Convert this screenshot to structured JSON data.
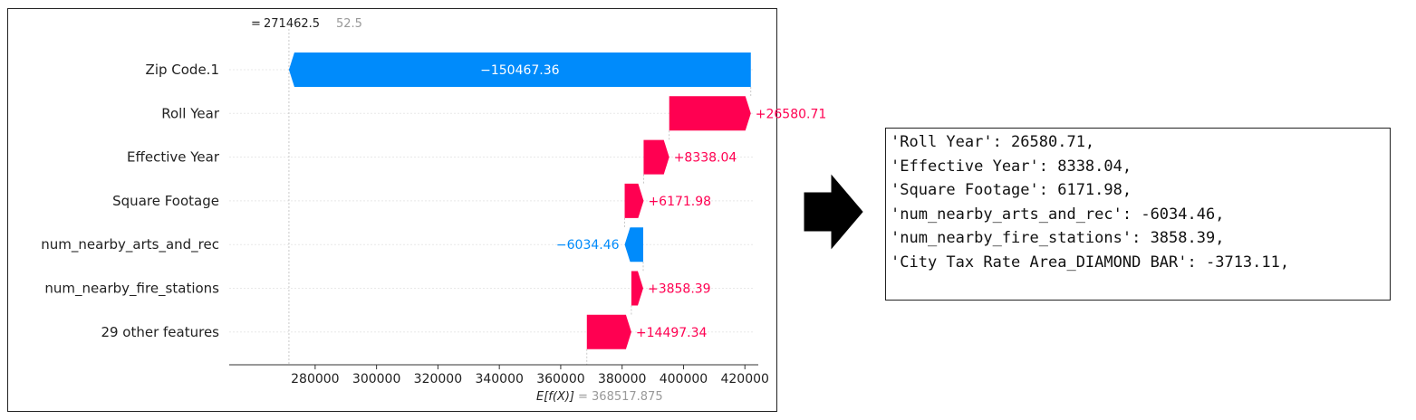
{
  "chart_data": {
    "type": "waterfall",
    "fx_label_prefix": "= ",
    "fx_value": "271462.5",
    "fx_overlap_fragment": "52.5",
    "base_label": "E[f(X)]",
    "base_value": "= 368517.875",
    "base_value_num": 368517.875,
    "xlim": [
      252000,
      422000
    ],
    "x_ticks": [
      280000,
      300000,
      320000,
      340000,
      360000,
      380000,
      400000,
      420000
    ],
    "x_tick_labels": [
      "280000",
      "300000",
      "320000",
      "340000",
      "360000",
      "380000",
      "400000",
      "420000"
    ],
    "features": [
      {
        "name": "Zip Code.1",
        "value": -150467.36,
        "label": "−150467.36",
        "start": 421929.86,
        "end": 271462.5
      },
      {
        "name": "Roll Year",
        "value": 26580.71,
        "label": "+26580.71",
        "start": 395349.15,
        "end": 421929.86
      },
      {
        "name": "Effective Year",
        "value": 8338.04,
        "label": "+8338.04",
        "start": 387011.11,
        "end": 395349.15
      },
      {
        "name": "Square Footage",
        "value": 6171.98,
        "label": "+6171.98",
        "start": 380839.13,
        "end": 387011.11
      },
      {
        "name": "num_nearby_arts_and_rec",
        "value": -6034.46,
        "label": "−6034.46",
        "start": 386873.59,
        "end": 380839.13
      },
      {
        "name": "num_nearby_fire_stations",
        "value": 3858.39,
        "label": "+3858.39",
        "start": 383015.2,
        "end": 386873.59
      },
      {
        "name": "29 other features",
        "value": 14497.34,
        "label": "+14497.34",
        "start": 368517.86,
        "end": 383015.2
      }
    ],
    "colors": {
      "positive": "#ff0051",
      "negative": "#008bfb",
      "positive_text": "#ff0051",
      "negative_text": "#008bfb",
      "inside_text": "#ffffff"
    }
  },
  "code_lines": [
    "'Roll Year': 26580.71,",
    "'Effective Year': 8338.04,",
    "'Square Footage': 6171.98,",
    "'num_nearby_arts_and_rec': -6034.46,",
    "'num_nearby_fire_stations': 3858.39,",
    "'City Tax Rate Area_DIAMOND BAR': -3713.11,"
  ]
}
